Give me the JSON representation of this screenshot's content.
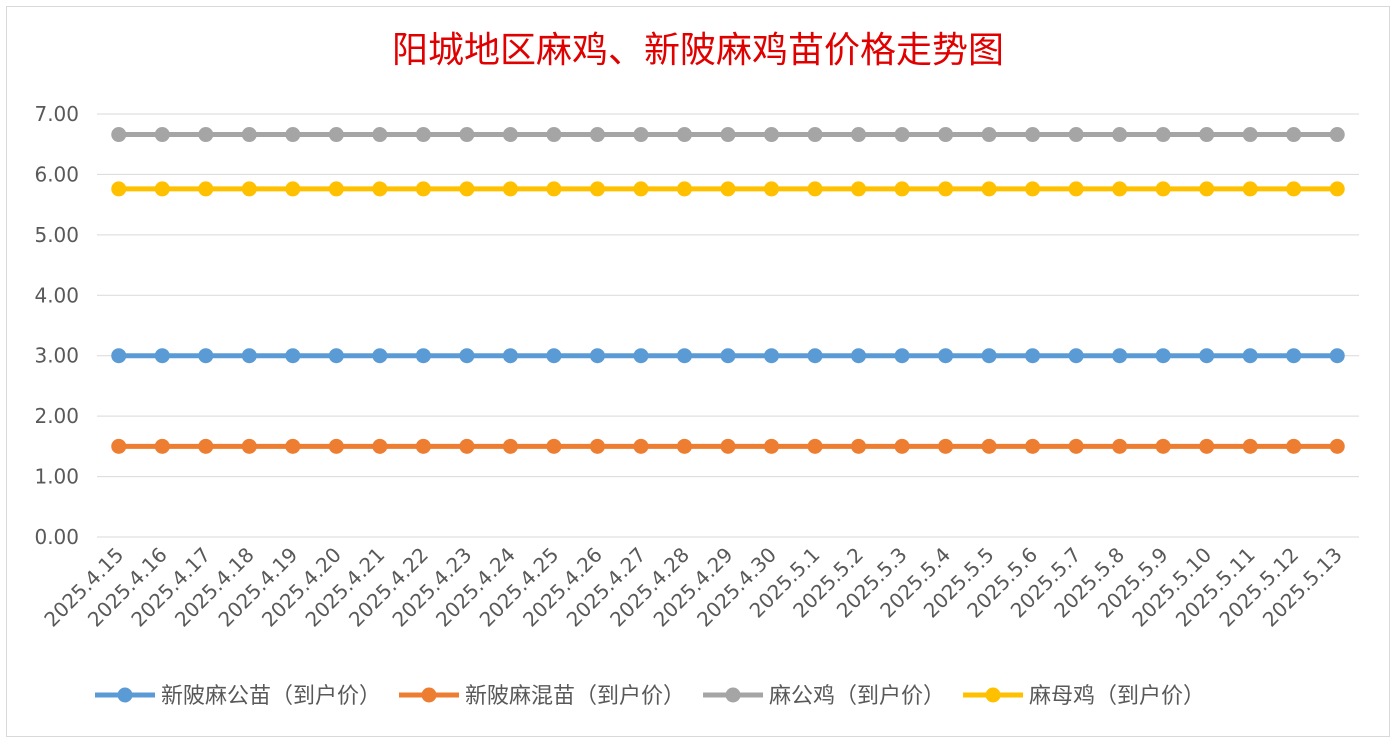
{
  "chart_data": {
    "type": "line",
    "title": "阳城地区麻鸡、新陂麻鸡苗价格走势图",
    "xlabel": "",
    "ylabel": "",
    "ylim": [
      0,
      7
    ],
    "yticks": [
      "0.00",
      "1.00",
      "2.00",
      "3.00",
      "4.00",
      "5.00",
      "6.00",
      "7.00"
    ],
    "grid": true,
    "legend_position": "bottom",
    "categories": [
      "2025.4.15",
      "2025.4.16",
      "2025.4.17",
      "2025.4.18",
      "2025.4.19",
      "2025.4.20",
      "2025.4.21",
      "2025.4.22",
      "2025.4.23",
      "2025.4.24",
      "2025.4.25",
      "2025.4.26",
      "2025.4.27",
      "2025.4.28",
      "2025.4.29",
      "2025.4.30",
      "2025.5.1",
      "2025.5.2",
      "2025.5.3",
      "2025.5.4",
      "2025.5.5",
      "2025.5.6",
      "2025.5.7",
      "2025.5.8",
      "2025.5.9",
      "2025.5.10",
      "2025.5.11",
      "2025.5.12",
      "2025.5.13"
    ],
    "series": [
      {
        "name": "新陂麻公苗（到户价）",
        "color": "#5b9bd5",
        "values": [
          3,
          3,
          3,
          3,
          3,
          3,
          3,
          3,
          3,
          3,
          3,
          3,
          3,
          3,
          3,
          3,
          3,
          3,
          3,
          3,
          3,
          3,
          3,
          3,
          3,
          3,
          3,
          3,
          3
        ]
      },
      {
        "name": "新陂麻混苗（到户价）",
        "color": "#ed7d31",
        "values": [
          1.5,
          1.5,
          1.5,
          1.5,
          1.5,
          1.5,
          1.5,
          1.5,
          1.5,
          1.5,
          1.5,
          1.5,
          1.5,
          1.5,
          1.5,
          1.5,
          1.5,
          1.5,
          1.5,
          1.5,
          1.5,
          1.5,
          1.5,
          1.5,
          1.5,
          1.5,
          1.5,
          1.5,
          1.5
        ]
      },
      {
        "name": "麻公鸡（到户价）",
        "color": "#a5a5a5",
        "values": [
          6.66,
          6.66,
          6.66,
          6.66,
          6.66,
          6.66,
          6.66,
          6.66,
          6.66,
          6.66,
          6.66,
          6.66,
          6.66,
          6.66,
          6.66,
          6.66,
          6.66,
          6.66,
          6.66,
          6.66,
          6.66,
          6.66,
          6.66,
          6.66,
          6.66,
          6.66,
          6.66,
          6.66,
          6.66
        ]
      },
      {
        "name": "麻母鸡（到户价）",
        "color": "#ffc000",
        "values": [
          5.76,
          5.76,
          5.76,
          5.76,
          5.76,
          5.76,
          5.76,
          5.76,
          5.76,
          5.76,
          5.76,
          5.76,
          5.76,
          5.76,
          5.76,
          5.76,
          5.76,
          5.76,
          5.76,
          5.76,
          5.76,
          5.76,
          5.76,
          5.76,
          5.76,
          5.76,
          5.76,
          5.76,
          5.76
        ]
      }
    ]
  }
}
